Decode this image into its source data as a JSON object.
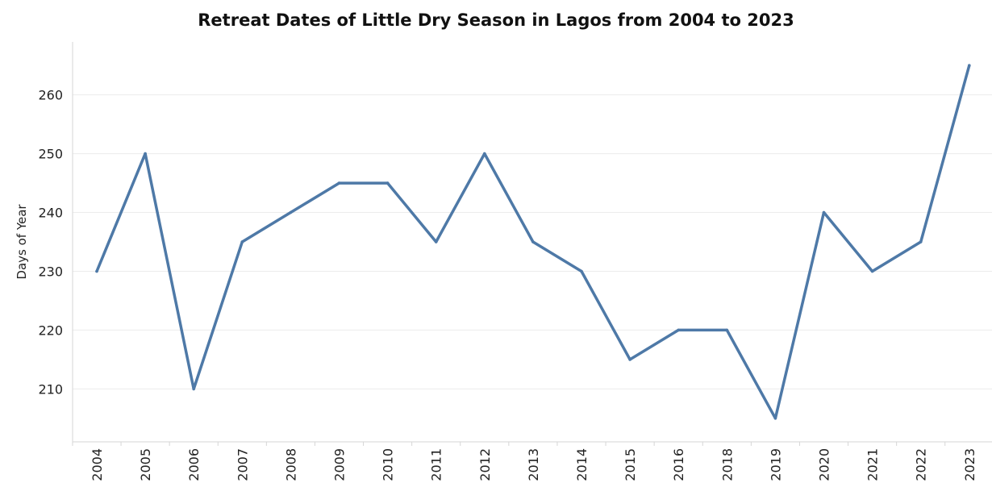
{
  "chart_data": {
    "type": "line",
    "title": "Retreat Dates of Little Dry Season in Lagos from 2004 to 2023",
    "xlabel": "",
    "ylabel": "Days of Year",
    "categories": [
      "2004",
      "2005",
      "2006",
      "2007",
      "2008",
      "2009",
      "2010",
      "2011",
      "2012",
      "2013",
      "2014",
      "2015",
      "2016",
      "2018",
      "2019",
      "2020",
      "2021",
      "2022",
      "2023"
    ],
    "series": [
      {
        "values": [
          230,
          250,
          210,
          235,
          240,
          245,
          245,
          235,
          250,
          235,
          230,
          215,
          220,
          220,
          205,
          240,
          230,
          235,
          265
        ]
      }
    ],
    "yticks": [
      210,
      220,
      230,
      240,
      250,
      260
    ],
    "ylim": [
      201,
      269
    ],
    "grid": true,
    "legend": "none",
    "color": "#4e79a7"
  }
}
